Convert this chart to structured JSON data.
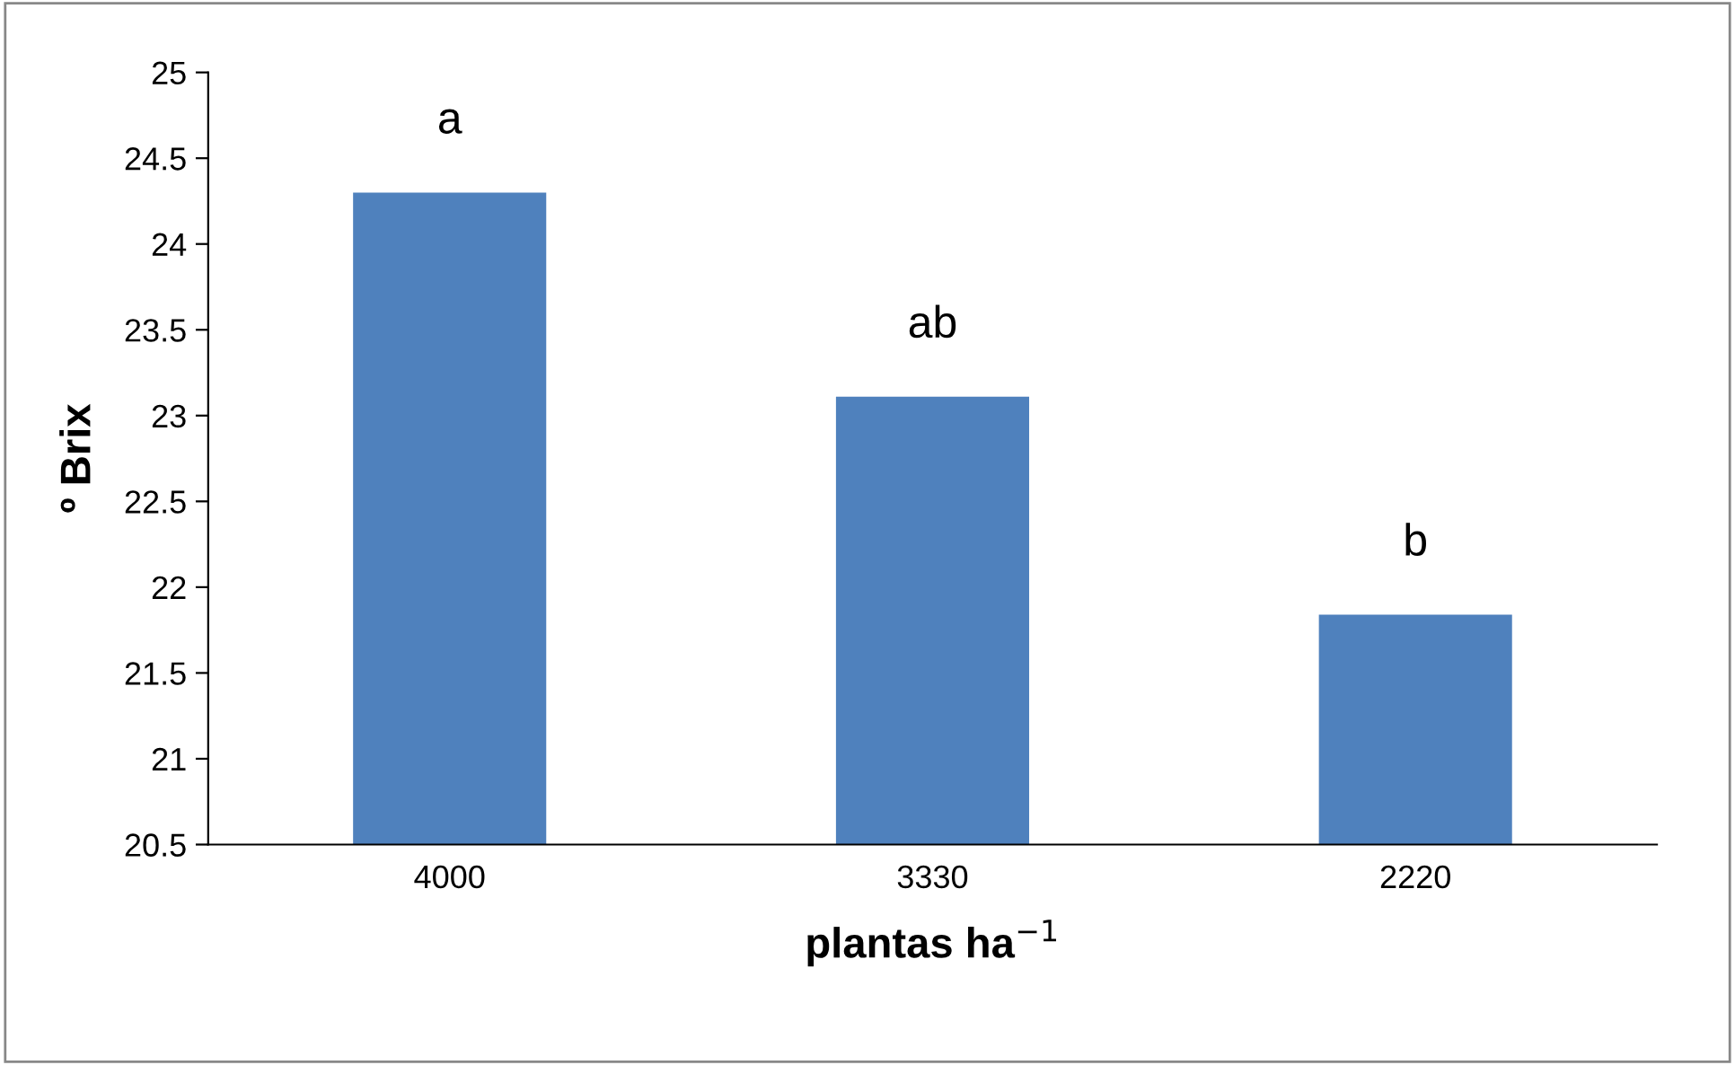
{
  "chart_data": {
    "type": "bar",
    "xlabel": "plantas ha$^{−1}$",
    "ylabel": "º Brix",
    "categories": [
      "4000",
      "3330",
      "2220"
    ],
    "values": [
      24.3,
      23.11,
      21.84
    ],
    "color": "#4f81bd",
    "ylim": [
      20.5,
      25
    ],
    "yticks": [
      20.5,
      21,
      21.5,
      22,
      22.5,
      23,
      23.5,
      24,
      24.5,
      25
    ],
    "grid": false,
    "annotations": [
      "a",
      "ab",
      "b"
    ]
  }
}
